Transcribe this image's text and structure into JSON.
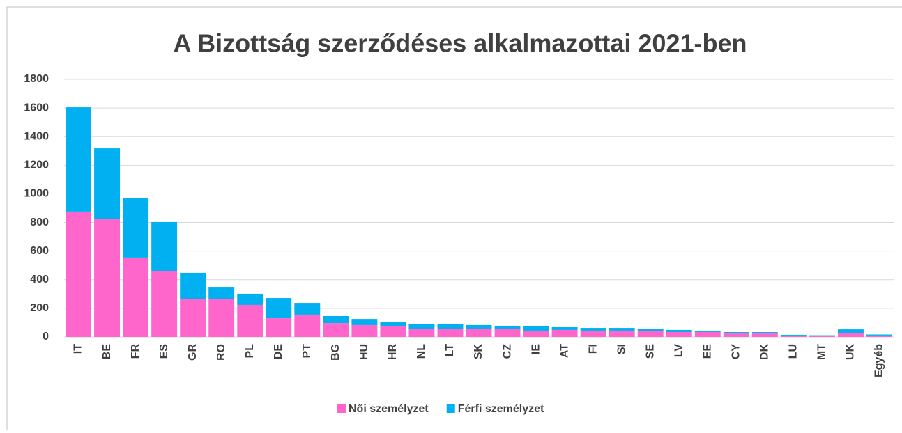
{
  "chart_data": {
    "type": "stacked_bar",
    "title": "A Bizottság szerződéses alkalmazottai 2021-ben",
    "categories": [
      "IT",
      "BE",
      "FR",
      "ES",
      "GR",
      "RO",
      "PL",
      "DE",
      "PT",
      "BG",
      "HU",
      "HR",
      "NL",
      "LT",
      "SK",
      "CZ",
      "IE",
      "AT",
      "FI",
      "SI",
      "SE",
      "LV",
      "EE",
      "CY",
      "DK",
      "LU",
      "MT",
      "UK",
      "Egyéb"
    ],
    "series": [
      {
        "name": "Női személyzet",
        "color": "#ff66cc",
        "values": [
          876,
          827,
          555,
          462,
          263,
          263,
          224,
          131,
          156,
          97,
          83,
          73,
          54,
          58,
          58,
          54,
          44,
          49,
          44,
          44,
          39,
          34,
          34,
          24,
          24,
          10,
          10,
          29,
          10
        ]
      },
      {
        "name": "Férfi személyzet",
        "color": "#00b0f0",
        "values": [
          729,
          491,
          413,
          341,
          185,
          87,
          78,
          141,
          82,
          49,
          43,
          29,
          38,
          30,
          25,
          24,
          29,
          19,
          19,
          19,
          19,
          15,
          5,
          10,
          10,
          5,
          2,
          24,
          7
        ]
      }
    ],
    "ylim": [
      0,
      1800
    ],
    "yticks": [
      0,
      200,
      400,
      600,
      800,
      1000,
      1200,
      1400,
      1600,
      1800
    ],
    "grid": true,
    "legend": "bottom"
  }
}
